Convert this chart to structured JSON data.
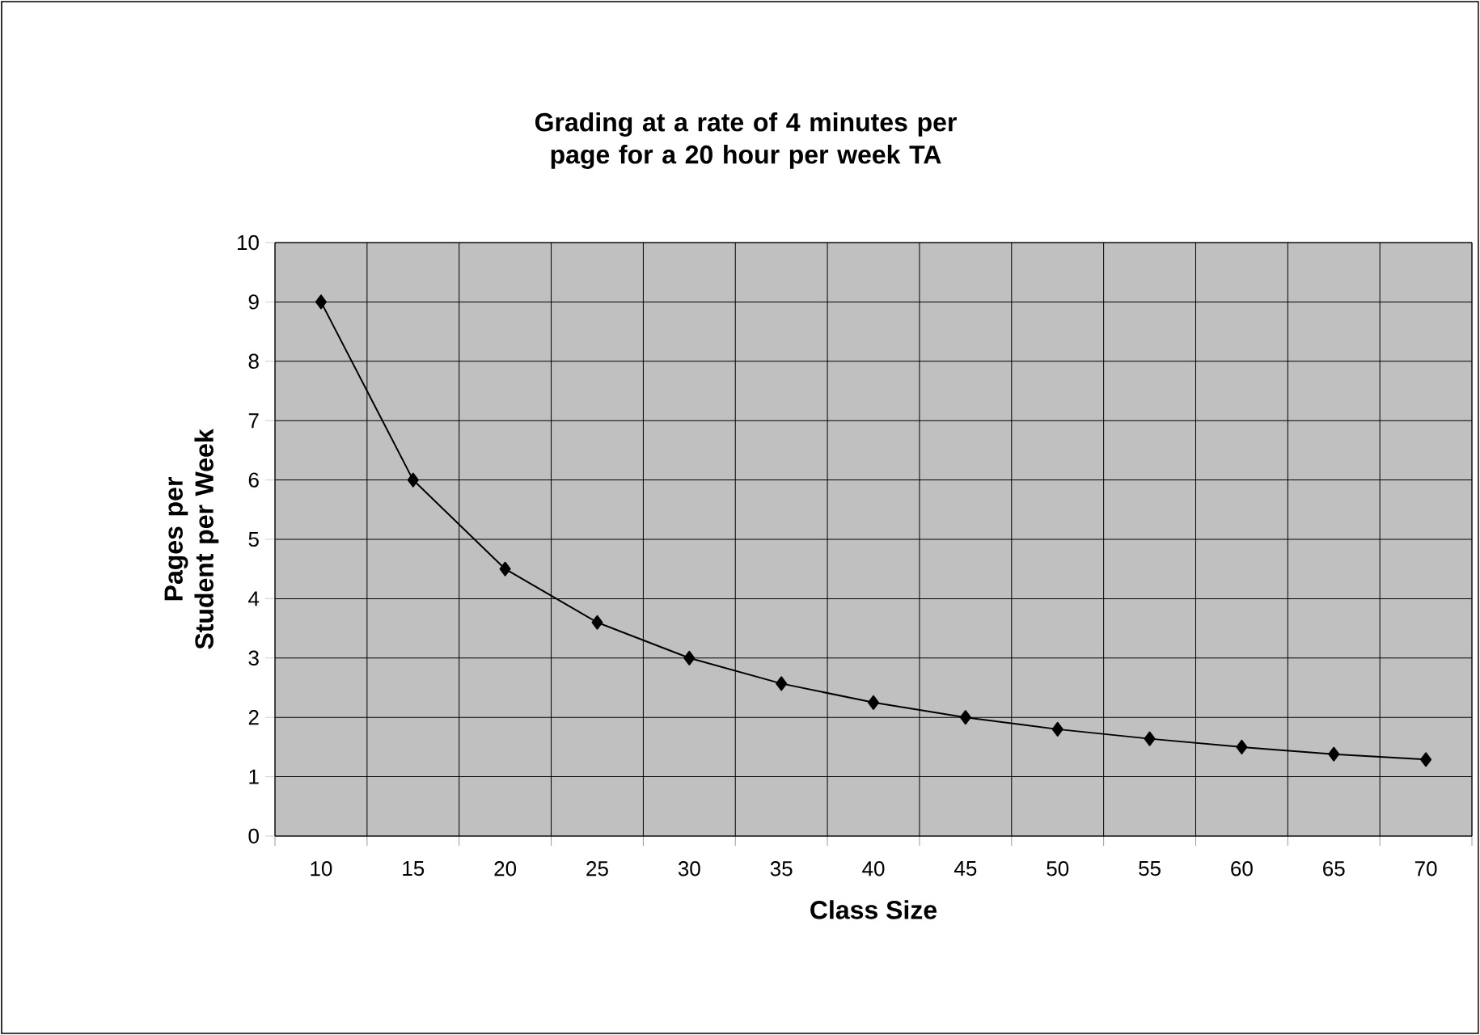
{
  "chart_data": {
    "type": "line",
    "title": "Grading at a rate of 4 minutes per page for a 20 hour per week TA",
    "xlabel": "Class Size",
    "ylabel": "Pages per Student per Week",
    "categories": [
      "10",
      "15",
      "20",
      "25",
      "30",
      "35",
      "40",
      "45",
      "50",
      "55",
      "60",
      "65",
      "70"
    ],
    "series": [
      {
        "color": "#000000",
        "values": [
          9,
          6,
          4.5,
          3.6,
          3,
          2.57,
          2.25,
          2,
          1.8,
          1.64,
          1.5,
          1.38,
          1.29
        ]
      }
    ],
    "ylim": [
      0,
      10
    ],
    "yticks": [
      0,
      1,
      2,
      3,
      4,
      5,
      6,
      7,
      8,
      9,
      10
    ],
    "grid": true,
    "marker": "diamond",
    "line_style": "solid"
  }
}
